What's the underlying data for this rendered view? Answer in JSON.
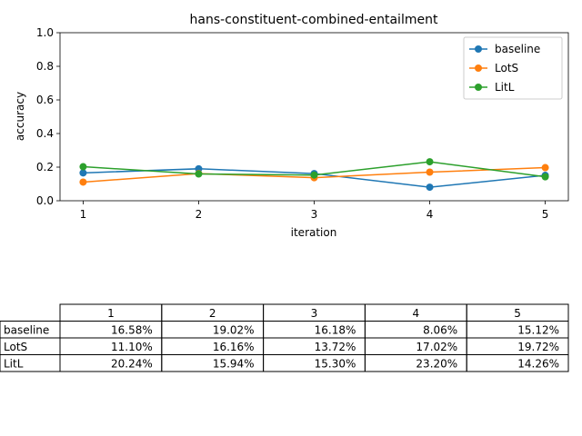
{
  "chart_data": {
    "type": "line",
    "title": "hans-constituent-combined-entailment",
    "xlabel": "iteration",
    "ylabel": "accuracy",
    "x": [
      1,
      2,
      3,
      4,
      5
    ],
    "xlim": [
      0.8,
      5.2
    ],
    "ylim": [
      0.0,
      1.0
    ],
    "yticks": [
      "0.0",
      "0.2",
      "0.4",
      "0.6",
      "0.8",
      "1.0"
    ],
    "legend_position": "top-right",
    "grid": false,
    "series": [
      {
        "name": "baseline",
        "color": "#1f77b4",
        "values": [
          0.1658,
          0.1902,
          0.1618,
          0.0806,
          0.1512
        ]
      },
      {
        "name": "LotS",
        "color": "#ff7f0e",
        "values": [
          0.111,
          0.1616,
          0.1372,
          0.1702,
          0.1972
        ]
      },
      {
        "name": "LitL",
        "color": "#2ca02c",
        "values": [
          0.2024,
          0.1594,
          0.153,
          0.232,
          0.1426
        ]
      }
    ]
  },
  "table": {
    "columns": [
      "1",
      "2",
      "3",
      "4",
      "5"
    ],
    "rows": [
      {
        "label": "baseline",
        "cells": [
          "16.58%",
          "19.02%",
          "16.18%",
          "8.06%",
          "15.12%"
        ]
      },
      {
        "label": "LotS",
        "cells": [
          "11.10%",
          "16.16%",
          "13.72%",
          "17.02%",
          "19.72%"
        ]
      },
      {
        "label": "LitL",
        "cells": [
          "20.24%",
          "15.94%",
          "15.30%",
          "23.20%",
          "14.26%"
        ]
      }
    ]
  }
}
